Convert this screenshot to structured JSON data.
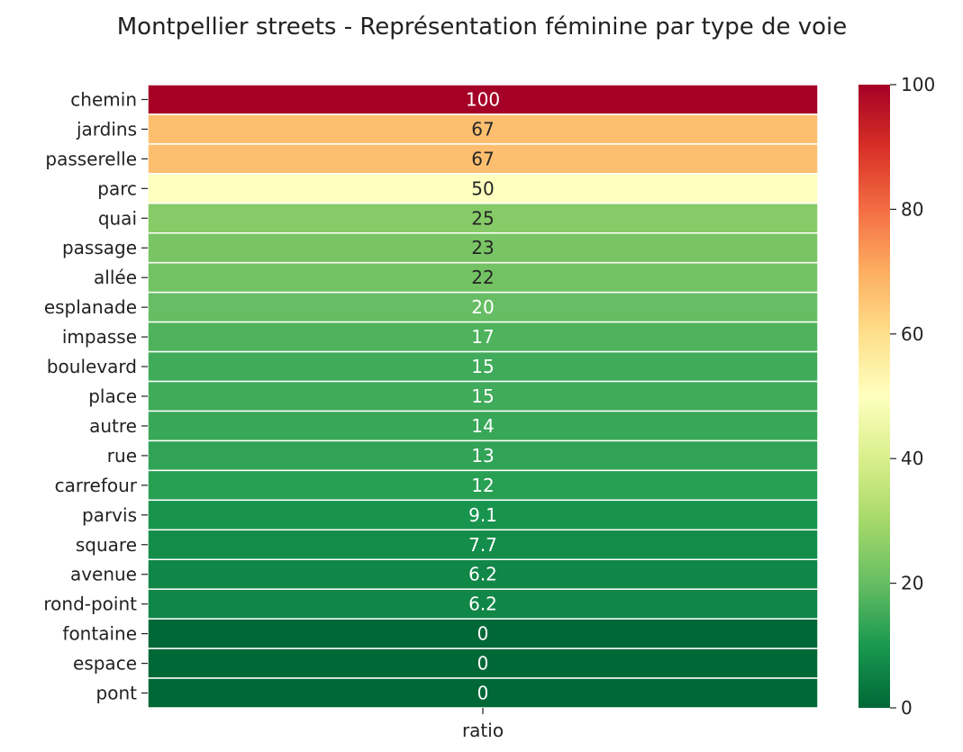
{
  "chart_data": {
    "type": "heatmap",
    "title": "Montpellier streets - Représentation féminine par type de voie",
    "xlabel": "",
    "ylabel": "",
    "columns": [
      "ratio"
    ],
    "rows": [
      "chemin",
      "jardins",
      "passerelle",
      "parc",
      "quai",
      "passage",
      "allée",
      "esplanade",
      "impasse",
      "boulevard",
      "place",
      "autre",
      "rue",
      "carrefour",
      "parvis",
      "square",
      "avenue",
      "rond-point",
      "fontaine",
      "espace",
      "pont"
    ],
    "values": [
      100,
      66.7,
      66.7,
      50,
      25,
      23,
      22,
      20,
      17,
      15,
      15,
      14,
      13,
      12,
      9.1,
      7.7,
      6.2,
      6.2,
      0,
      0,
      0
    ],
    "annotations": [
      "100",
      "67",
      "67",
      "50",
      "25",
      "23",
      "22",
      "20",
      "17",
      "15",
      "15",
      "14",
      "13",
      "12",
      "9.1",
      "7.7",
      "6.2",
      "6.2",
      "0",
      "0",
      "0"
    ],
    "colorbar": {
      "colormap": "RdYlGn_r",
      "range": [
        0,
        100
      ],
      "ticks": [
        0,
        20,
        40,
        60,
        80,
        100
      ]
    },
    "grid": false,
    "legend": "colorbar-right"
  }
}
